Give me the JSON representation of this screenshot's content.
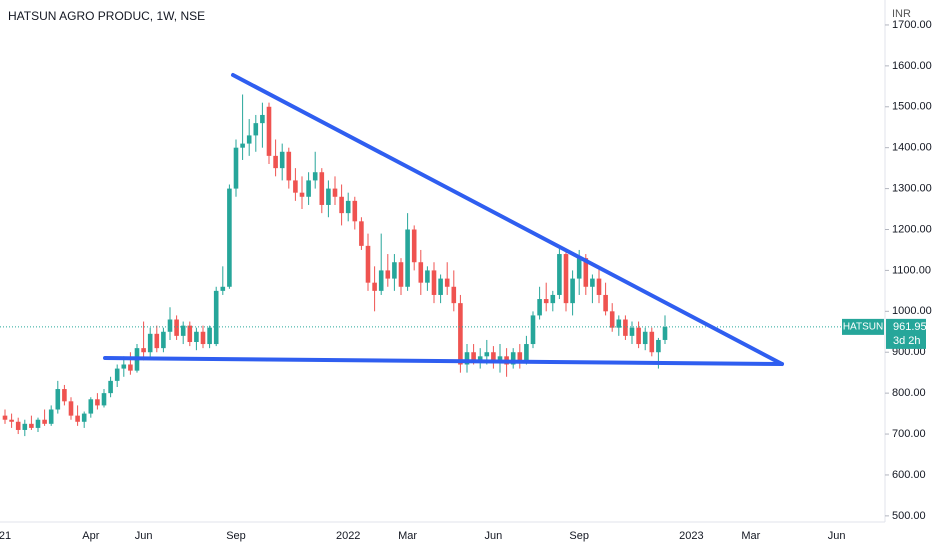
{
  "chart_data": {
    "type": "candlestick",
    "title": "HATSUN AGRO PRODUC, 1W, NSE",
    "currency": "INR",
    "symbol_label": "HATSUN",
    "countdown": "3d 2h",
    "up_color": "#26a69a",
    "down_color": "#ef5350",
    "ylim": [
      485,
      1761
    ],
    "yticks": [
      {
        "value": 500,
        "label": "500.00"
      },
      {
        "value": 600,
        "label": "600.00"
      },
      {
        "value": 700,
        "label": "700.00"
      },
      {
        "value": 800,
        "label": "800.00"
      },
      {
        "value": 900,
        "label": "900.00"
      },
      {
        "value": 1000,
        "label": "1000.00"
      },
      {
        "value": 1100,
        "label": "1100.00"
      },
      {
        "value": 1200,
        "label": "1200.00"
      },
      {
        "value": 1300,
        "label": "1300.00"
      },
      {
        "value": 1400,
        "label": "1400.00"
      },
      {
        "value": 1500,
        "label": "1500.00"
      },
      {
        "value": 1600,
        "label": "1600.00"
      },
      {
        "value": 1700,
        "label": "1700.00"
      }
    ],
    "categories": [
      "21",
      null,
      null,
      null,
      null,
      null,
      null,
      null,
      null,
      null,
      null,
      null,
      null,
      "Apr",
      null,
      null,
      null,
      null,
      null,
      null,
      null,
      "Jun",
      null,
      null,
      null,
      null,
      null,
      null,
      null,
      null,
      null,
      null,
      null,
      null,
      null,
      "Sep",
      null,
      null,
      null,
      null,
      null,
      null,
      null,
      null,
      null,
      null,
      null,
      null,
      null,
      null,
      null,
      null,
      "2022",
      null,
      null,
      null,
      null,
      null,
      null,
      null,
      null,
      "Mar",
      null,
      null,
      null,
      null,
      null,
      null,
      null,
      null,
      null,
      null,
      null,
      null,
      "Jun",
      null,
      null,
      null,
      null,
      null,
      null,
      null,
      null,
      null,
      null,
      null,
      null,
      "Sep",
      null,
      null,
      null,
      null,
      null,
      null,
      null,
      null,
      null,
      null,
      null,
      null,
      null,
      null,
      null,
      null,
      "2023",
      null,
      null,
      null,
      null,
      null,
      null,
      null,
      null,
      "Mar",
      null,
      null,
      null,
      null,
      null,
      null,
      null,
      null,
      null,
      null,
      null,
      null,
      "Jun",
      null,
      null,
      null,
      null
    ],
    "open": [
      745,
      735,
      730,
      710,
      725,
      715,
      735,
      725,
      760,
      810,
      780,
      745,
      730,
      750,
      785,
      770,
      800,
      830,
      860,
      870,
      855,
      910,
      900,
      945,
      910,
      950,
      980,
      940,
      965,
      925,
      950,
      920,
      920,
      1050,
      1060,
      1300,
      1400,
      1410,
      1430,
      1460,
      1500,
      1380,
      1350,
      1390,
      1320,
      1290,
      1280,
      1320,
      1340,
      1260,
      1300,
      1280,
      1240,
      1270,
      1220,
      1160,
      1070,
      1050,
      1100,
      1080,
      1120,
      1060,
      1200,
      1120,
      1070,
      1100,
      1040,
      1080,
      1060,
      1020,
      870,
      900,
      880,
      890,
      900,
      880,
      890,
      870,
      900,
      880,
      920,
      990,
      1030,
      1020,
      1040,
      1140,
      1020,
      1080,
      1130,
      1060,
      1080,
      1040,
      1000,
      960,
      980,
      940,
      960,
      920,
      950,
      900,
      930,
      null,
      null,
      null,
      null,
      null,
      null,
      null,
      null,
      null,
      null,
      null,
      null,
      null,
      null,
      null,
      null,
      null,
      null,
      null,
      null,
      null,
      null,
      null,
      null,
      null,
      null,
      null,
      null,
      null,
      null
    ],
    "high": [
      760,
      750,
      740,
      735,
      745,
      740,
      760,
      770,
      830,
      820,
      790,
      770,
      755,
      790,
      800,
      810,
      840,
      870,
      890,
      900,
      920,
      975,
      960,
      965,
      960,
      1010,
      990,
      975,
      975,
      960,
      965,
      965,
      1060,
      1110,
      1310,
      1420,
      1530,
      1470,
      1480,
      1510,
      1510,
      1420,
      1410,
      1400,
      1350,
      1330,
      1340,
      1390,
      1350,
      1320,
      1330,
      1310,
      1290,
      1280,
      1230,
      1190,
      1110,
      1190,
      1140,
      1140,
      1130,
      1240,
      1210,
      1150,
      1110,
      1120,
      1090,
      1120,
      1100,
      1040,
      920,
      920,
      910,
      930,
      915,
      920,
      910,
      910,
      920,
      940,
      1000,
      1060,
      1070,
      1050,
      1160,
      1150,
      1100,
      1150,
      1140,
      1090,
      1110,
      1070,
      1020,
      990,
      990,
      975,
      975,
      960,
      960,
      935,
      990,
      null,
      null,
      null,
      null,
      null,
      null,
      null,
      null,
      null,
      null,
      null,
      null,
      null,
      null,
      null,
      null,
      null,
      null,
      null,
      null,
      null,
      null,
      null,
      null,
      null,
      null,
      null,
      null,
      null,
      null
    ],
    "low": [
      725,
      715,
      700,
      695,
      710,
      705,
      720,
      720,
      750,
      770,
      735,
      720,
      715,
      740,
      760,
      765,
      790,
      815,
      840,
      845,
      850,
      880,
      885,
      900,
      900,
      930,
      930,
      920,
      915,
      905,
      910,
      910,
      915,
      1040,
      1055,
      1280,
      1370,
      1380,
      1390,
      1400,
      1360,
      1330,
      1320,
      1300,
      1270,
      1250,
      1260,
      1300,
      1240,
      1230,
      1260,
      1210,
      1220,
      1200,
      1150,
      1050,
      1000,
      1040,
      1060,
      1050,
      1040,
      1050,
      1100,
      1040,
      1050,
      1020,
      1020,
      1040,
      1000,
      850,
      850,
      870,
      860,
      870,
      860,
      850,
      840,
      860,
      860,
      870,
      910,
      980,
      1000,
      1000,
      1030,
      1000,
      990,
      1040,
      1040,
      1020,
      1020,
      990,
      950,
      940,
      930,
      920,
      910,
      905,
      890,
      860,
      920,
      null,
      null,
      null,
      null,
      null,
      null,
      null,
      null,
      null,
      null,
      null,
      null,
      null,
      null,
      null,
      null,
      null,
      null,
      null,
      null,
      null,
      null,
      null,
      null,
      null,
      null,
      null,
      null,
      null,
      null
    ],
    "close": [
      735,
      730,
      710,
      725,
      715,
      735,
      725,
      760,
      810,
      780,
      745,
      730,
      750,
      785,
      770,
      800,
      830,
      860,
      870,
      855,
      910,
      900,
      945,
      910,
      950,
      980,
      940,
      965,
      925,
      950,
      920,
      960,
      1050,
      1060,
      1300,
      1400,
      1410,
      1430,
      1460,
      1480,
      1380,
      1350,
      1390,
      1320,
      1290,
      1280,
      1320,
      1340,
      1260,
      1300,
      1280,
      1240,
      1270,
      1220,
      1160,
      1070,
      1050,
      1100,
      1080,
      1120,
      1060,
      1200,
      1120,
      1070,
      1100,
      1040,
      1080,
      1060,
      1020,
      870,
      900,
      880,
      890,
      900,
      880,
      890,
      870,
      900,
      880,
      920,
      990,
      1030,
      1020,
      1040,
      1140,
      1020,
      1080,
      1130,
      1060,
      1080,
      1040,
      1000,
      960,
      980,
      940,
      960,
      920,
      950,
      900,
      930,
      961.95,
      null,
      null,
      null,
      null,
      null,
      null,
      null,
      null,
      null,
      null,
      null,
      null,
      null,
      null,
      null,
      null,
      null,
      null,
      null,
      null,
      null,
      null,
      null,
      null,
      null,
      null,
      null,
      null,
      null,
      null
    ]
  }
}
